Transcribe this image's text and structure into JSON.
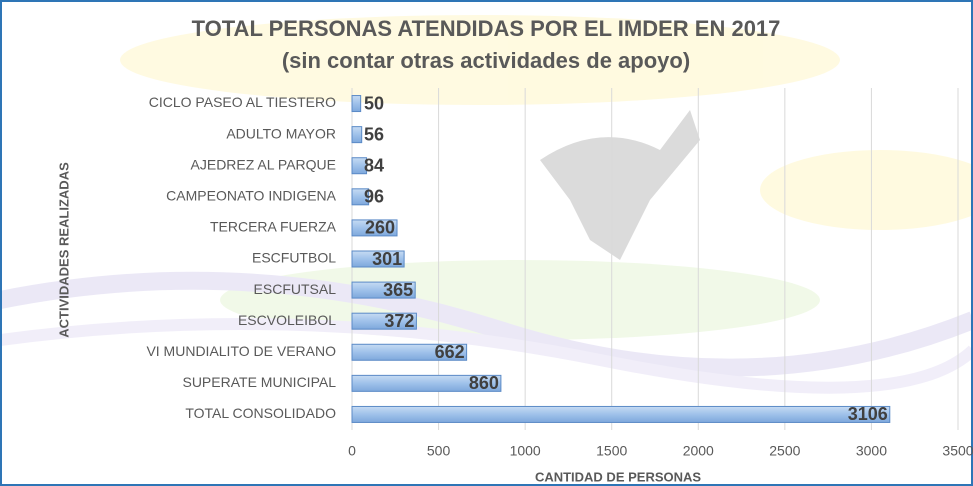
{
  "chart_data": {
    "type": "bar",
    "orientation": "horizontal",
    "title": "TOTAL PERSONAS ATENDIDAS POR EL IMDER EN 2017",
    "subtitle": "(sin contar otras actividades de apoyo)",
    "x_label": "CANTIDAD DE PERSONAS",
    "y_label": "ACTIVIDADES REALIZADAS",
    "categories": [
      "CICLO PASEO AL TIESTERO",
      "ADULTO MAYOR",
      "AJEDREZ AL PARQUE",
      "CAMPEONATO INDIGENA",
      "TERCERA FUERZA",
      "ESCFUTBOL",
      "ESCFUTSAL",
      "ESCVOLEIBOL",
      "VI MUNDIALITO DE VERANO",
      "SUPERATE MUNICIPAL",
      "TOTAL CONSOLIDADO"
    ],
    "values": [
      50,
      56,
      84,
      96,
      260,
      301,
      365,
      372,
      662,
      860,
      3106
    ],
    "color": "#8db3e2",
    "xlim": [
      0,
      3500
    ],
    "xticks": [
      0,
      500,
      1000,
      1500,
      2000,
      2500,
      3000,
      3500
    ],
    "grid": true
  }
}
